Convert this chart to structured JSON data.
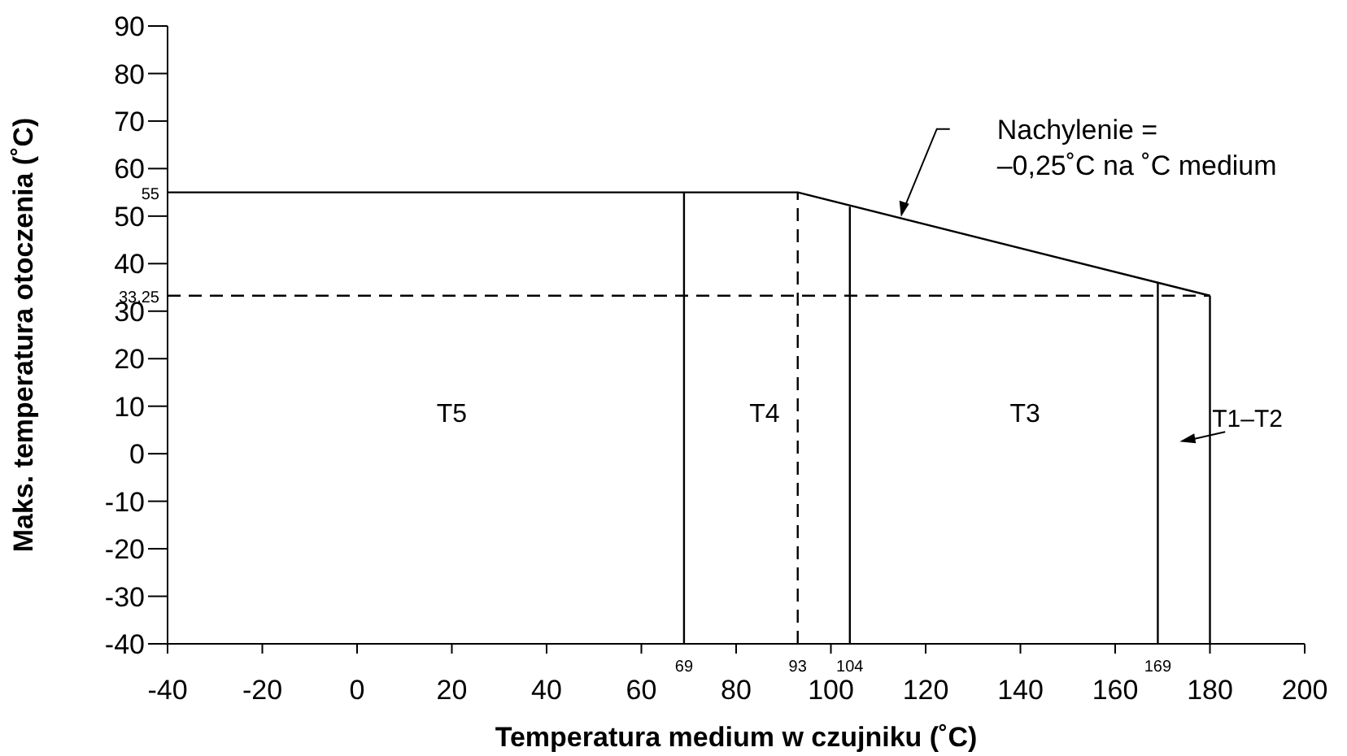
{
  "chart_data": {
    "type": "line",
    "xlabel": "Temperatura medium w czujniku (˚C)",
    "ylabel": "Maks. temperatura otoczenia (˚C)",
    "xlim": [
      -40,
      200
    ],
    "xticks": [
      -40,
      -20,
      0,
      20,
      40,
      60,
      80,
      100,
      120,
      140,
      160,
      180,
      200
    ],
    "ylim": [
      -40,
      90
    ],
    "yticks": [
      -40,
      -30,
      -20,
      -10,
      0,
      10,
      20,
      30,
      40,
      50,
      60,
      70,
      80,
      90
    ],
    "marker": "none",
    "series": [
      {
        "color": "#000000",
        "x": [
          -40,
          93,
          180
        ],
        "values": [
          55,
          55,
          33.25
        ]
      },
      {
        "color": "#000000",
        "x": [
          -40,
          180
        ],
        "values": [
          33.25,
          33.25
        ],
        "line_style": "dashed"
      },
      {
        "color": "#000000",
        "x": [
          69,
          69
        ],
        "values": [
          -40,
          55
        ]
      },
      {
        "color": "#000000",
        "x": [
          93,
          93
        ],
        "values": [
          -40,
          55
        ],
        "line_style": "dashed"
      },
      {
        "color": "#000000",
        "x": [
          104,
          104
        ],
        "values": [
          -40,
          52
        ]
      },
      {
        "color": "#000000",
        "x": [
          169,
          169
        ],
        "values": [
          -40,
          36
        ]
      },
      {
        "color": "#000000",
        "x": [
          180,
          180
        ],
        "values": [
          -40,
          33.25
        ]
      }
    ],
    "annotations": [
      {
        "text": "55",
        "x": -40,
        "y": 55
      },
      {
        "text": "33,25",
        "x": -40,
        "y": 33.25
      },
      {
        "text": "69",
        "x": 69,
        "y": -40
      },
      {
        "text": "93",
        "x": 93,
        "y": -40
      },
      {
        "text": "104",
        "x": 104,
        "y": -40
      },
      {
        "text": "169",
        "x": 169,
        "y": -40
      },
      "T5",
      "T4",
      "T3",
      "Nachylenie =\n–0,25˚C na ˚C medium",
      "T1–T2"
    ]
  }
}
